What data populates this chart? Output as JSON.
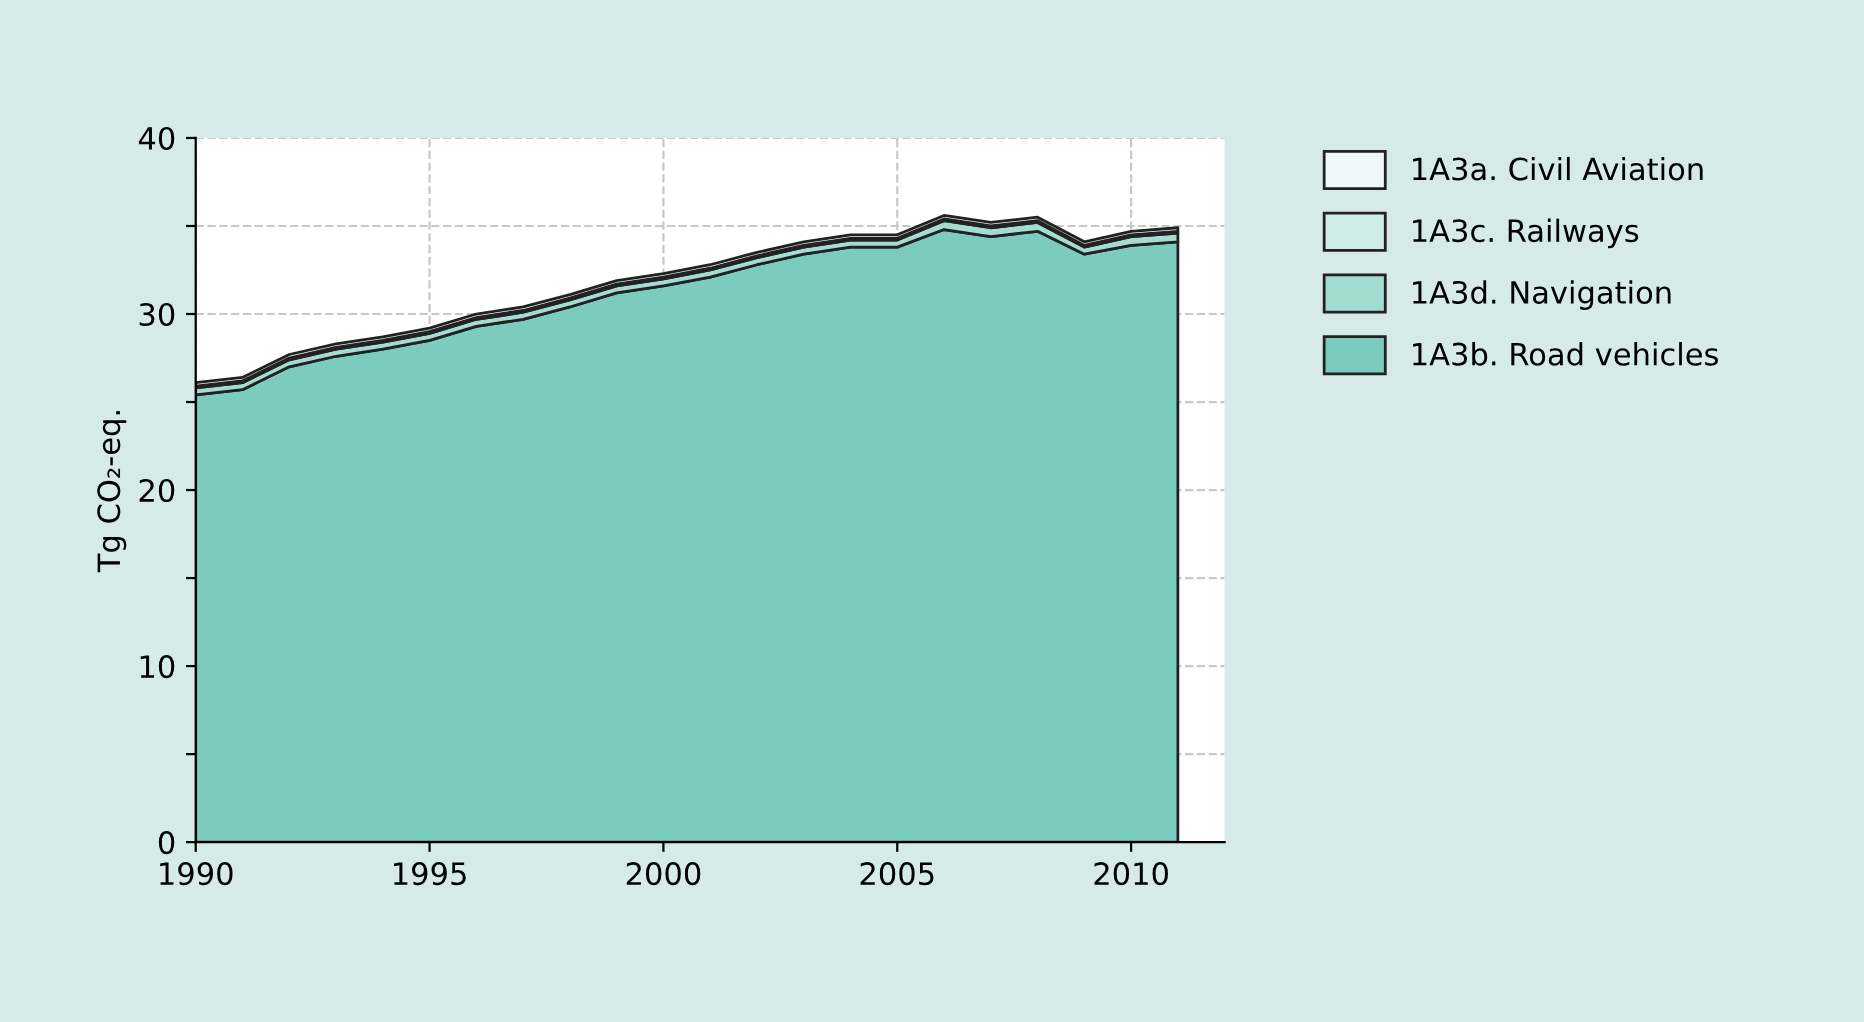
{
  "chart_data": {
    "type": "area",
    "stacked": true,
    "ylabel": "Tg CO₂-eq.",
    "x": [
      1990,
      1991,
      1992,
      1993,
      1994,
      1995,
      1996,
      1997,
      1998,
      1999,
      2000,
      2001,
      2002,
      2003,
      2004,
      2005,
      2006,
      2007,
      2008,
      2009,
      2010,
      2011
    ],
    "series": [
      {
        "name": "1A3b. Road vehicles",
        "color": "#7bcbbf",
        "values": [
          25.4,
          25.7,
          27.0,
          27.6,
          28.0,
          28.5,
          29.3,
          29.7,
          30.4,
          31.2,
          31.6,
          32.1,
          32.8,
          33.4,
          33.8,
          33.8,
          34.8,
          34.4,
          34.7,
          33.4,
          33.9,
          34.1
        ]
      },
      {
        "name": "1A3d. Navigation",
        "color": "#a4dcd2",
        "values": [
          0.4,
          0.4,
          0.4,
          0.4,
          0.4,
          0.4,
          0.4,
          0.4,
          0.4,
          0.4,
          0.4,
          0.4,
          0.4,
          0.4,
          0.4,
          0.4,
          0.5,
          0.5,
          0.5,
          0.4,
          0.5,
          0.5
        ]
      },
      {
        "name": "1A3c. Railways",
        "color": "#d0ece7",
        "values": [
          0.1,
          0.1,
          0.1,
          0.1,
          0.1,
          0.1,
          0.1,
          0.1,
          0.1,
          0.1,
          0.1,
          0.1,
          0.1,
          0.1,
          0.1,
          0.1,
          0.1,
          0.1,
          0.1,
          0.1,
          0.1,
          0.1
        ]
      },
      {
        "name": "1A3a. Civil Aviation",
        "color": "#eef8f6",
        "values": [
          0.2,
          0.2,
          0.2,
          0.2,
          0.2,
          0.2,
          0.2,
          0.2,
          0.2,
          0.2,
          0.2,
          0.2,
          0.2,
          0.2,
          0.2,
          0.2,
          0.2,
          0.2,
          0.2,
          0.2,
          0.2,
          0.2
        ]
      }
    ],
    "xlim": [
      1990,
      2012
    ],
    "xticks": [
      1990,
      1995,
      2000,
      2005,
      2010
    ],
    "ylim": [
      0,
      40
    ],
    "yticks": [
      0,
      {
        "value": 5,
        "label": null
      },
      10,
      {
        "value": 15,
        "label": null
      },
      20,
      {
        "value": 25,
        "label": null
      },
      30,
      {
        "value": 35,
        "label": null
      },
      40
    ],
    "grid": true,
    "legend": "right"
  }
}
